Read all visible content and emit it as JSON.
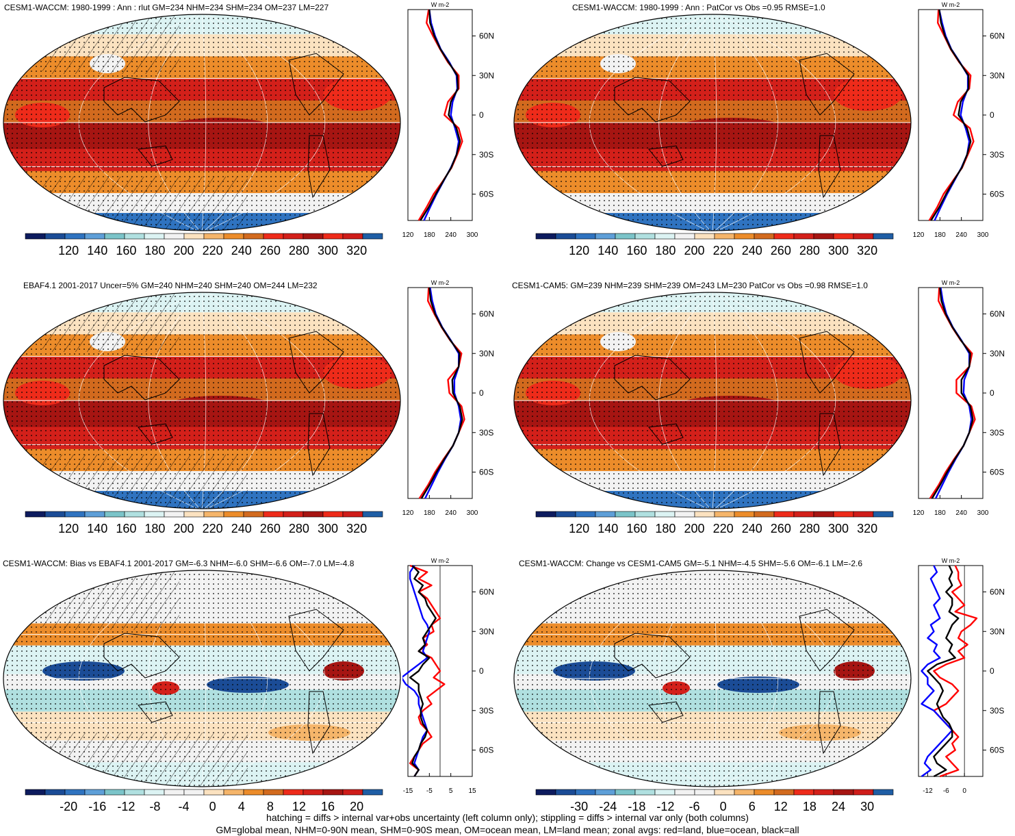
{
  "palettes": {
    "abs": [
      "#0d1b5e",
      "#1b4c96",
      "#2f73c0",
      "#5e9fd8",
      "#7bc4c9",
      "#b0e0e0",
      "#dcf3f3",
      "#f2f2f2",
      "#fbe2c0",
      "#f5b56a",
      "#ec8c2a",
      "#d26a1e",
      "#ee2b1a",
      "#d3201a",
      "#a61512",
      "#ee2b1a",
      "#cf1d1a",
      "#1f5ea5"
    ],
    "diff": [
      "#0d1b5e",
      "#1b4c96",
      "#2f73c0",
      "#5e9fd8",
      "#7bc4c9",
      "#b0e0e0",
      "#dcf3f3",
      "#f2f2f2",
      "#f2f2f2",
      "#fbe2c0",
      "#f5b56a",
      "#ec8c2a",
      "#d26a1e",
      "#ee2b1a",
      "#d3201a",
      "#a61512",
      "#cf1d1a",
      "#1f5ea5"
    ]
  },
  "chart_data": [
    {
      "type": "map",
      "id": "p1",
      "title": "CESM1-WACCM: 1980-1999 : Ann : rlut GM=234 NHM=234 SHM=234 OM=237 LM=227",
      "colorbar_ticks": [
        "120",
        "140",
        "160",
        "180",
        "200",
        "220",
        "240",
        "260",
        "280",
        "300",
        "320"
      ],
      "palette": "abs",
      "hatching": true,
      "profile": {
        "unit": "W m-2",
        "xticks": [
          "120",
          "180",
          "240",
          "300"
        ],
        "xlim": [
          120,
          300
        ],
        "ylabels": [
          "60N",
          "30N",
          "0",
          "30S",
          "60S"
        ],
        "lat": [
          80,
          70,
          60,
          50,
          40,
          30,
          20,
          10,
          0,
          -10,
          -20,
          -30,
          -40,
          -50,
          -60,
          -70,
          -80
        ],
        "series": [
          {
            "name": "land",
            "color": "#ff0000",
            "values": [
              178,
              172,
              190,
              210,
              232,
              262,
              262,
              232,
              222,
              262,
              272,
              258,
              242,
              218,
              192,
              172,
              150
            ]
          },
          {
            "name": "ocean",
            "color": "#0000ff",
            "values": [
              180,
              185,
              196,
              212,
              236,
              256,
              258,
              245,
              240,
              252,
              262,
              256,
              240,
              220,
              200,
              182,
              165
            ]
          },
          {
            "name": "all",
            "color": "#000000",
            "values": [
              180,
              182,
              194,
              211,
              234,
              258,
              260,
              240,
              234,
              256,
              266,
              256,
              241,
              219,
              198,
              178,
              155
            ]
          }
        ]
      }
    },
    {
      "type": "map",
      "id": "p2",
      "title": "CESM1-WACCM: 1980-1999 : Ann : PatCor vs Obs =0.95 RMSE=1.0",
      "colorbar_ticks": [
        "120",
        "140",
        "160",
        "180",
        "200",
        "220",
        "240",
        "260",
        "280",
        "300",
        "320"
      ],
      "palette": "abs",
      "hatching": false,
      "profile": {
        "unit": "W m-2",
        "xticks": [
          "120",
          "180",
          "240",
          "300"
        ],
        "xlim": [
          120,
          300
        ],
        "ylabels": [
          "60N",
          "30N",
          "0",
          "30S",
          "60S"
        ],
        "lat": [
          80,
          70,
          60,
          50,
          40,
          30,
          20,
          10,
          0,
          -10,
          -20,
          -30,
          -40,
          -50,
          -60,
          -70,
          -80
        ],
        "series": [
          {
            "name": "land",
            "color": "#ff0000",
            "values": [
              176,
              174,
              192,
              210,
              234,
              266,
              262,
              230,
              218,
              264,
              274,
              258,
              242,
              216,
              190,
              172,
              150
            ]
          },
          {
            "name": "ocean",
            "color": "#0000ff",
            "values": [
              178,
              186,
              196,
              212,
              236,
              258,
              258,
              244,
              238,
              252,
              262,
              256,
              240,
              220,
              200,
              182,
              165
            ]
          },
          {
            "name": "all",
            "color": "#000000",
            "values": [
              178,
              183,
              194,
              211,
              235,
              260,
              260,
              238,
              232,
              256,
              266,
              256,
              241,
              218,
              197,
              178,
              155
            ]
          }
        ]
      }
    },
    {
      "type": "map",
      "id": "p3",
      "title": "EBAF4.1 2001-2017 Uncer=5% GM=240 NHM=240 SHM=240 OM=244 LM=232",
      "colorbar_ticks": [
        "120",
        "140",
        "160",
        "180",
        "200",
        "220",
        "240",
        "260",
        "280",
        "300",
        "320"
      ],
      "palette": "abs",
      "hatching": true,
      "profile": {
        "unit": "W m-2",
        "xticks": [
          "120",
          "180",
          "240",
          "300"
        ],
        "xlim": [
          120,
          300
        ],
        "ylabels": [
          "60N",
          "30N",
          "0",
          "30S",
          "60S"
        ],
        "lat": [
          80,
          70,
          60,
          50,
          40,
          30,
          20,
          10,
          0,
          -10,
          -20,
          -30,
          -40,
          -50,
          -60,
          -70,
          -80
        ],
        "series": [
          {
            "name": "land",
            "color": "#ff0000",
            "values": [
              178,
              176,
              194,
              214,
              238,
              270,
              262,
              232,
              236,
              270,
              278,
              262,
              246,
              220,
              196,
              176,
              152
            ]
          },
          {
            "name": "ocean",
            "color": "#0000ff",
            "values": [
              182,
              188,
              198,
              216,
              240,
              262,
              262,
              250,
              250,
              262,
              268,
              262,
              246,
              224,
              204,
              186,
              168
            ]
          },
          {
            "name": "all",
            "color": "#000000",
            "values": [
              180,
              184,
              196,
              215,
              239,
              265,
              262,
              244,
              246,
              265,
              272,
              262,
              246,
              222,
              200,
              180,
              158
            ]
          }
        ]
      }
    },
    {
      "type": "map",
      "id": "p4",
      "title": "CESM1-CAM5: GM=239 NHM=239 SHM=239 OM=243 LM=230 PatCor vs Obs =0.98 RMSE=1.0",
      "colorbar_ticks": [
        "120",
        "140",
        "160",
        "180",
        "200",
        "220",
        "240",
        "260",
        "280",
        "300",
        "320"
      ],
      "palette": "abs",
      "hatching": false,
      "profile": {
        "unit": "W m-2",
        "xticks": [
          "120",
          "180",
          "240",
          "300"
        ],
        "xlim": [
          120,
          300
        ],
        "ylabels": [
          "60N",
          "30N",
          "0",
          "30S",
          "60S"
        ],
        "lat": [
          80,
          70,
          60,
          50,
          40,
          30,
          20,
          10,
          0,
          -10,
          -20,
          -30,
          -40,
          -50,
          -60,
          -70,
          -80
        ],
        "series": [
          {
            "name": "land",
            "color": "#ff0000",
            "values": [
              178,
              176,
              194,
              214,
              238,
              270,
              262,
              226,
              226,
              268,
              278,
              262,
              246,
              220,
              196,
              176,
              152
            ]
          },
          {
            "name": "ocean",
            "color": "#0000ff",
            "values": [
              182,
              188,
              198,
              216,
              240,
              262,
              262,
              248,
              246,
              262,
              268,
              262,
              246,
              224,
              204,
              186,
              168
            ]
          },
          {
            "name": "all",
            "color": "#000000",
            "values": [
              180,
              184,
              196,
              215,
              239,
              265,
              262,
              240,
              240,
              265,
              272,
              262,
              246,
              222,
              200,
              180,
              158
            ]
          }
        ]
      }
    },
    {
      "type": "map",
      "id": "p5",
      "title": "CESM1-WACCM: Bias vs EBAF4.1 2001-2017 GM=-6.3 NHM=-6.0 SHM=-6.6 OM=-7.0 LM=-4.8",
      "colorbar_ticks": [
        "-20",
        "-16",
        "-12",
        "-8",
        "-4",
        "0",
        "4",
        "8",
        "12",
        "16",
        "20"
      ],
      "palette": "diff",
      "hatching": true,
      "profile": {
        "unit": "W m-2",
        "xticks": [
          "-15",
          "-5",
          "5",
          "15"
        ],
        "xlim": [
          -15,
          15
        ],
        "zero_line": 0,
        "ylabels": [
          "60N",
          "30N",
          "0",
          "30S",
          "60S"
        ],
        "lat": [
          80,
          75,
          70,
          65,
          60,
          55,
          50,
          45,
          40,
          35,
          30,
          25,
          20,
          15,
          10,
          5,
          0,
          -5,
          -10,
          -15,
          -20,
          -25,
          -30,
          -35,
          -40,
          -45,
          -50,
          -55,
          -60,
          -65,
          -70,
          -75,
          -80
        ],
        "series": [
          {
            "name": "land",
            "color": "#ff0000",
            "values": [
              -14,
              -6,
              -10,
              -4,
              -10,
              -6,
              -4,
              -2,
              0,
              -4,
              -3,
              -8,
              -6,
              -10,
              -4,
              -2,
              0,
              -3,
              2,
              -2,
              -6,
              -4,
              -8,
              -10,
              -9,
              -6,
              -4,
              -8,
              -10,
              -12,
              -14,
              -10,
              -12
            ]
          },
          {
            "name": "ocean",
            "color": "#0000ff",
            "values": [
              -12,
              -14,
              -14,
              -13,
              -12,
              -11,
              -10,
              -9,
              -8,
              -6,
              -5,
              -6,
              -7,
              -8,
              -6,
              -10,
              -14,
              -18,
              -16,
              -12,
              -10,
              -10,
              -9,
              -8,
              -7,
              -6,
              -8,
              -9,
              -10,
              -11,
              -12,
              -10,
              -12
            ]
          },
          {
            "name": "all",
            "color": "#000000",
            "values": [
              -13,
              -10,
              -12,
              -8,
              -10,
              -7,
              -6,
              -4,
              -2,
              -4,
              -6,
              -8,
              -7,
              -10,
              -5,
              -8,
              -10,
              -14,
              -10,
              -10,
              -9,
              -8,
              -9,
              -9,
              -8,
              -6,
              -7,
              -9,
              -10,
              -12,
              -13,
              -10,
              -12
            ]
          }
        ]
      }
    },
    {
      "type": "map",
      "id": "p6",
      "title": "CESM1-WACCM: Change vs CESM1-CAM5 GM=-5.1 NHM=-4.5 SHM=-5.6 OM=-6.1 LM=-2.6",
      "colorbar_ticks": [
        "-30",
        "-24",
        "-18",
        "-12",
        "-6",
        "0",
        "6",
        "12",
        "18",
        "24",
        "30"
      ],
      "palette": "diff",
      "hatching": false,
      "profile": {
        "unit": "W m-2",
        "xticks": [
          "-12",
          "-6",
          "0"
        ],
        "xlim": [
          -15,
          6
        ],
        "zero_line": 0,
        "ylabels": [
          "60N",
          "30N",
          "0",
          "30S",
          "60S"
        ],
        "lat": [
          80,
          75,
          70,
          65,
          60,
          55,
          50,
          45,
          40,
          35,
          30,
          25,
          20,
          15,
          10,
          5,
          0,
          -5,
          -10,
          -15,
          -20,
          -25,
          -30,
          -35,
          -40,
          -45,
          -50,
          -55,
          -60,
          -65,
          -70,
          -75,
          -80
        ],
        "series": [
          {
            "name": "land",
            "color": "#ff0000",
            "values": [
              -3,
              -2,
              -2,
              -1,
              -4,
              -2,
              0,
              -3,
              4,
              2,
              -1,
              -2,
              1,
              -2,
              0,
              -6,
              -10,
              -8,
              -4,
              -2,
              -4,
              -6,
              -10,
              -8,
              -6,
              -4,
              -2,
              -4,
              -3,
              -6,
              -4,
              -2,
              -8
            ]
          },
          {
            "name": "ocean",
            "color": "#0000ff",
            "values": [
              -10,
              -9,
              -11,
              -10,
              -9,
              -8,
              -10,
              -9,
              -8,
              -11,
              -10,
              -12,
              -9,
              -10,
              -8,
              -12,
              -14,
              -12,
              -12,
              -10,
              -12,
              -14,
              -10,
              -8,
              -6,
              -4,
              -6,
              -8,
              -10,
              -12,
              -13,
              -11,
              -14
            ]
          },
          {
            "name": "all",
            "color": "#000000",
            "values": [
              -5,
              -4,
              -5,
              -4,
              -6,
              -4,
              -4,
              -5,
              -2,
              -4,
              -5,
              -6,
              -4,
              -5,
              -3,
              -9,
              -12,
              -10,
              -8,
              -7,
              -8,
              -9,
              -8,
              -7,
              -5,
              -4,
              -4,
              -6,
              -8,
              -10,
              -9,
              -6,
              -10
            ]
          }
        ]
      }
    }
  ],
  "footer": {
    "line1": "hatching = diffs > internal var+obs uncertainty (left column only); stippling = diffs > internal var only (both columns)",
    "line2": "GM=global mean, NHM=0-90N mean, SHM=0-90S mean, OM=ocean mean, LM=land mean; zonal avgs: red=land, blue=ocean, black=all"
  }
}
